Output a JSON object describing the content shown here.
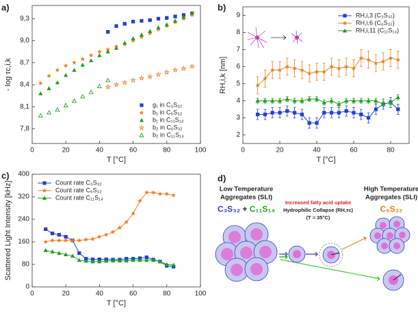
{
  "chart_data": [
    {
      "type": "scatter",
      "panel_label": "a)",
      "xlabel": "T [°C]",
      "ylabel": "- log τc,i,k",
      "xlim": [
        0,
        100
      ],
      "xticks": [
        0,
        20,
        40,
        60,
        80,
        100
      ],
      "ylim": [
        7.6,
        9.48
      ],
      "yticks": [
        {
          "value": 7.8,
          "label": "7,8"
        },
        {
          "value": 8.1,
          "label": "8,1"
        },
        {
          "value": 8.4,
          "label": "8,4"
        },
        {
          "value": 8.7,
          "label": "8,7"
        },
        {
          "value": 9.0,
          "label": "9,0"
        },
        {
          "value": 9.3,
          "label": "9,3"
        }
      ],
      "legend": "lower right",
      "series": [
        {
          "name": "g₁ in C₃S₃₂",
          "color": "#1f3fd6",
          "marker": "square",
          "x": [
            45,
            50,
            55,
            60,
            65,
            70,
            75,
            80,
            85,
            90,
            95
          ],
          "values": [
            9.12,
            9.2,
            9.23,
            9.26,
            9.27,
            9.28,
            9.3,
            9.31,
            9.33,
            9.35,
            9.37
          ]
        },
        {
          "name": "b₁ in C₆S₃₂",
          "color": "#f07d1a",
          "marker": "star",
          "x": [
            5,
            10,
            15,
            20,
            25,
            30,
            35,
            40,
            45,
            50,
            55,
            60,
            65,
            70,
            75,
            80,
            85,
            90,
            95
          ],
          "values": [
            8.42,
            8.52,
            8.6,
            8.66,
            8.7,
            8.75,
            8.8,
            8.85,
            8.88,
            8.92,
            8.95,
            9.0,
            9.05,
            9.1,
            9.15,
            9.2,
            9.25,
            9.3,
            9.35
          ]
        },
        {
          "name": "b₁ in C₁₁S₁₄",
          "color": "#1aa31a",
          "marker": "triangle",
          "x": [
            5,
            10,
            15,
            20,
            25,
            30,
            35,
            40,
            45,
            50,
            55,
            60,
            65,
            70,
            75,
            80,
            85,
            90,
            95
          ],
          "values": [
            8.28,
            8.35,
            8.43,
            8.53,
            8.6,
            8.67,
            8.73,
            8.8,
            8.85,
            8.9,
            8.97,
            9.03,
            9.08,
            9.13,
            9.18,
            9.22,
            9.27,
            9.32,
            9.38
          ]
        },
        {
          "name": "b₂ in C₆S₃₂",
          "color": "#f07d1a",
          "marker": "star-open",
          "x": [
            45,
            50,
            55,
            60,
            65,
            70,
            75,
            80,
            85,
            90,
            95
          ],
          "values": [
            8.37,
            8.4,
            8.43,
            8.46,
            8.49,
            8.51,
            8.54,
            8.57,
            8.6,
            8.62,
            8.65
          ]
        },
        {
          "name": "b₂ in C₁₁S₁₄",
          "color": "#1aa31a",
          "marker": "triangle-open",
          "x": [
            5,
            10,
            15,
            20,
            25,
            30,
            35,
            40,
            45
          ],
          "values": [
            7.98,
            8.02,
            8.06,
            8.12,
            8.18,
            8.24,
            8.3,
            8.38,
            8.46
          ]
        }
      ]
    },
    {
      "type": "line",
      "panel_label": "b)",
      "xlabel": "T [°C]",
      "ylabel": "RH,i,k [nm]",
      "xlim": [
        0,
        90
      ],
      "xticks": [
        0,
        20,
        40,
        60,
        80
      ],
      "ylim": [
        1.5,
        9.5
      ],
      "yticks": [
        2,
        3,
        4,
        5,
        6,
        7,
        8,
        9
      ],
      "legend": "upper right",
      "series": [
        {
          "name": "RH,i,3 (C₃S₃₂)",
          "color": "#1f3fd6",
          "marker": "square",
          "x": [
            8,
            12,
            16,
            20,
            24,
            28,
            32,
            36,
            40,
            44,
            48,
            52,
            56,
            60,
            64,
            68,
            72,
            76,
            80,
            84
          ],
          "values": [
            3.2,
            3.2,
            3.3,
            3.3,
            3.4,
            3.3,
            3.2,
            2.7,
            2.7,
            3.3,
            3.3,
            3.3,
            3.4,
            3.3,
            3.2,
            3.0,
            3.5,
            3.8,
            3.9,
            3.5
          ],
          "errors": [
            0.3,
            0.3,
            0.3,
            0.3,
            0.3,
            0.3,
            0.3,
            0.3,
            0.3,
            0.3,
            0.3,
            0.3,
            0.3,
            0.3,
            0.3,
            0.3,
            0.3,
            0.3,
            0.3,
            0.3
          ]
        },
        {
          "name": "RH,i,6 (C₆S₃₂)",
          "color": "#f07d1a",
          "marker": "star",
          "x": [
            8,
            12,
            16,
            20,
            24,
            28,
            32,
            36,
            40,
            44,
            48,
            52,
            56,
            60,
            64,
            68,
            72,
            76,
            80,
            84
          ],
          "values": [
            4.9,
            5.3,
            5.8,
            5.8,
            6.0,
            5.9,
            5.8,
            5.6,
            5.7,
            5.7,
            6.0,
            5.9,
            6.0,
            5.9,
            6.5,
            6.4,
            6.2,
            6.3,
            6.5,
            6.4
          ],
          "errors": [
            0.5,
            0.5,
            0.5,
            0.5,
            0.5,
            0.5,
            0.5,
            0.5,
            0.5,
            0.5,
            0.5,
            0.5,
            0.5,
            0.5,
            0.5,
            0.5,
            0.5,
            0.5,
            0.5,
            0.5
          ]
        },
        {
          "name": "RH,i,11 (C₁₁S₁₄)",
          "color": "#1aa31a",
          "marker": "triangle",
          "x": [
            8,
            12,
            16,
            20,
            24,
            28,
            32,
            36,
            40,
            44,
            48,
            52,
            56,
            60,
            64,
            68,
            72,
            76,
            80,
            84
          ],
          "values": [
            4.0,
            4.0,
            4.0,
            4.0,
            4.1,
            4.0,
            4.0,
            4.1,
            4.1,
            3.9,
            4.0,
            3.8,
            4.0,
            4.0,
            4.0,
            4.0,
            4.0,
            3.8,
            3.9,
            4.2
          ],
          "errors": [
            0.15,
            0.15,
            0.15,
            0.15,
            0.15,
            0.15,
            0.15,
            0.15,
            0.15,
            0.15,
            0.15,
            0.15,
            0.15,
            0.15,
            0.15,
            0.15,
            0.15,
            0.15,
            0.15,
            0.15
          ]
        }
      ]
    },
    {
      "type": "line",
      "panel_label": "c)",
      "xlabel": "T [°C]",
      "ylabel": "Scattered Light Intensity [kHz]",
      "xlim": [
        0,
        100
      ],
      "xticks": [
        0,
        20,
        40,
        60,
        80,
        100
      ],
      "ylim": [
        0,
        400
      ],
      "yticks": [
        0,
        80,
        160,
        240,
        320,
        400
      ],
      "legend": "upper left",
      "series": [
        {
          "name": "Count rate C₃S₃₂",
          "color": "#1f3fd6",
          "marker": "square",
          "x": [
            8,
            12,
            16,
            20,
            24,
            28,
            32,
            36,
            40,
            44,
            48,
            52,
            56,
            60,
            64,
            68,
            72,
            76,
            80,
            84
          ],
          "values": [
            205,
            190,
            185,
            178,
            165,
            120,
            100,
            98,
            98,
            98,
            97,
            97,
            100,
            100,
            102,
            105,
            97,
            90,
            75,
            72
          ]
        },
        {
          "name": "Count rate C₆S₃₂",
          "color": "#f07d1a",
          "marker": "star",
          "x": [
            8,
            12,
            16,
            20,
            24,
            28,
            32,
            36,
            40,
            44,
            48,
            52,
            56,
            60,
            64,
            68,
            72,
            76,
            80,
            84
          ],
          "values": [
            160,
            165,
            165,
            165,
            165,
            165,
            168,
            170,
            178,
            185,
            195,
            210,
            230,
            260,
            305,
            335,
            335,
            330,
            330,
            325
          ]
        },
        {
          "name": "Count rate C₁₁S₁₄",
          "color": "#1aa31a",
          "marker": "triangle",
          "x": [
            8,
            12,
            16,
            20,
            24,
            28,
            32,
            36,
            40,
            44,
            48,
            52,
            56,
            60,
            64,
            68,
            72,
            76,
            80,
            84
          ],
          "values": [
            130,
            125,
            120,
            115,
            110,
            95,
            92,
            90,
            90,
            92,
            93,
            93,
            93,
            95,
            95,
            95,
            95,
            90,
            80,
            78
          ]
        }
      ]
    }
  ],
  "diagram": {
    "panel_label": "d)",
    "low": {
      "line1": "Low Temperature",
      "line2": "Aggregates (SLI)",
      "species": [
        "C₃S₃₂",
        "+",
        "C₁₁S₁₄"
      ]
    },
    "middle": {
      "highlight": "Increased fatty acid uptake",
      "line1": "Hydrophilic Collapse (RH,τc)",
      "line2": "(T = 35°C)"
    },
    "high": {
      "line1": "High Temperature",
      "line2": "Aggregates (SLI)",
      "species": "C₆S₃₂"
    }
  }
}
